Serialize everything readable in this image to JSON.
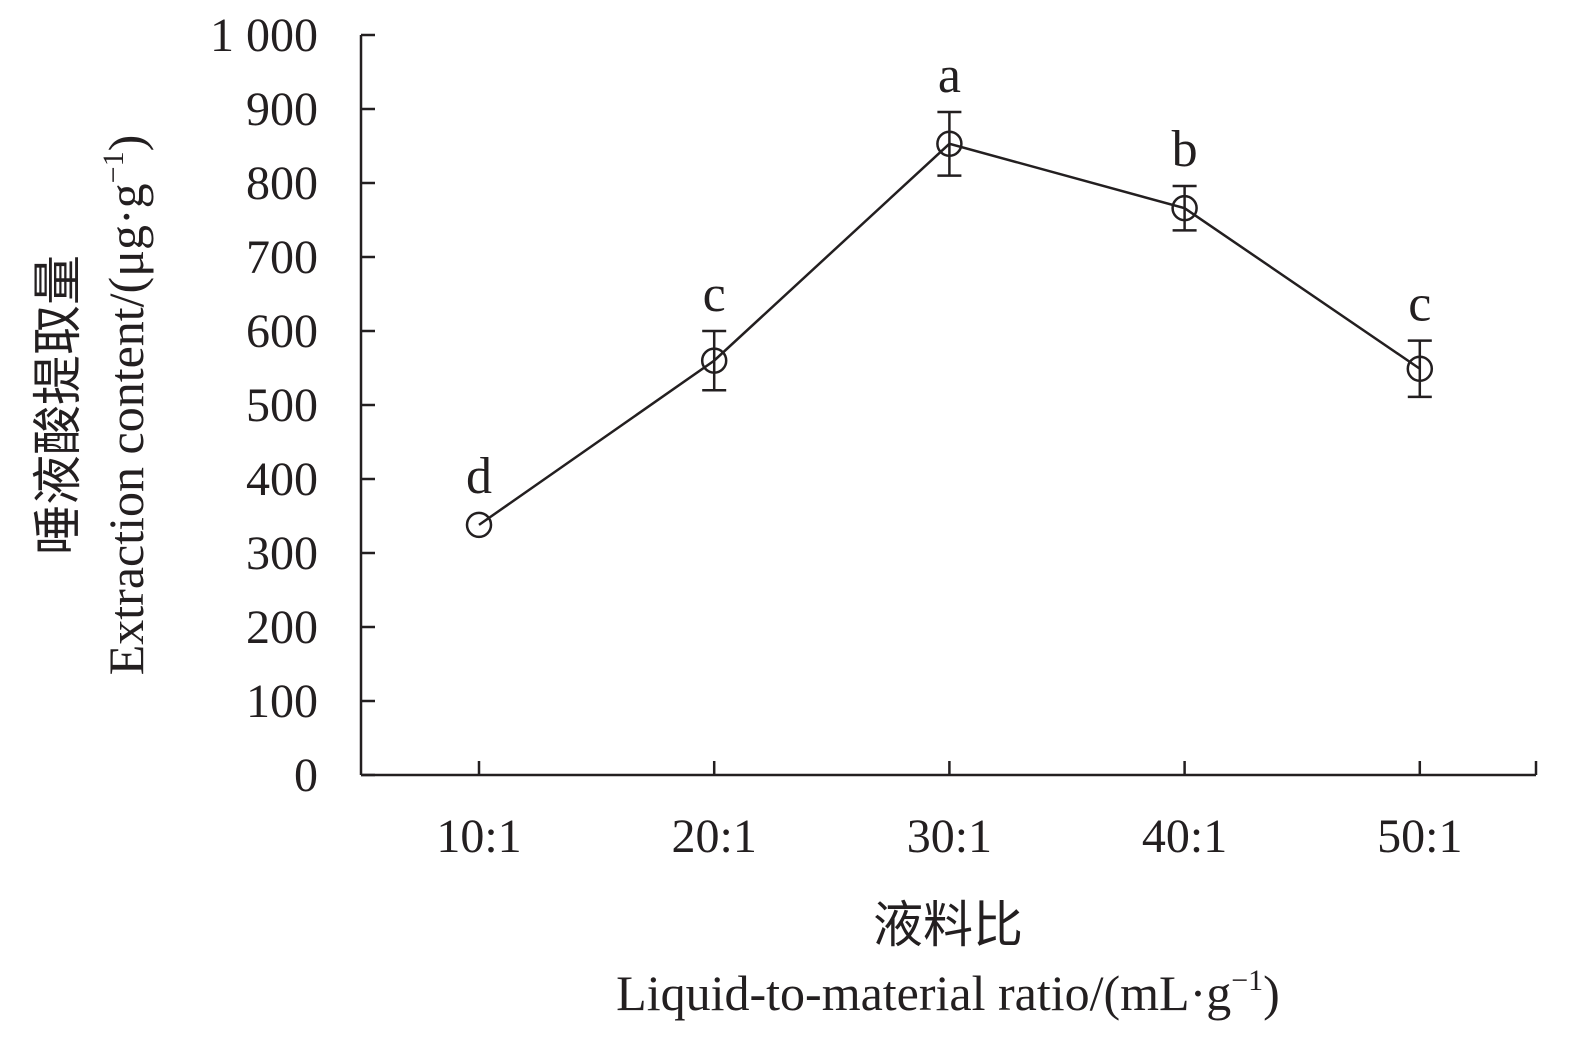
{
  "chart_data": {
    "type": "line",
    "categories": [
      "10:1",
      "20:1",
      "30:1",
      "40:1",
      "50:1"
    ],
    "series": [
      {
        "values": [
          338,
          560,
          853,
          766,
          549
        ],
        "errors": [
          0,
          40,
          43,
          30,
          38
        ],
        "significance_letters": [
          "d",
          "c",
          "a",
          "b",
          "c"
        ]
      }
    ],
    "y_ticks": [
      "0",
      "100",
      "200",
      "300",
      "400",
      "500",
      "600",
      "700",
      "800",
      "900",
      "1 000"
    ],
    "ylim": [
      0,
      1000
    ],
    "xlabel_cn": "液料比",
    "xlabel_en_main": "Liquid-to-material ratio/(mL·g",
    "xlabel_en_sup": "−1",
    "xlabel_en_close": ")",
    "ylabel_cn": "唾液酸提取量",
    "ylabel_en_main": "Extraction content/(μg·g",
    "ylabel_en_sup": "−1",
    "ylabel_en_close": ")",
    "grid": false,
    "marker": "open-circle",
    "colors": {
      "line": "#231f20",
      "background": "#ffffff"
    }
  }
}
